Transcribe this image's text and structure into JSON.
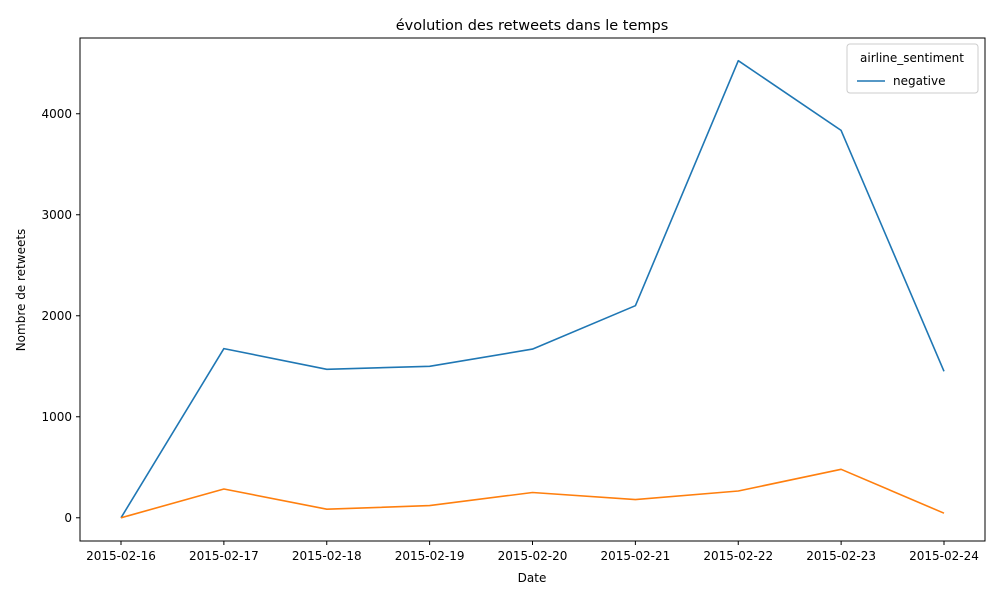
{
  "chart_data": {
    "type": "line",
    "title": "évolution des retweets dans le temps",
    "xlabel": "Date",
    "ylabel": "Nombre de retweets",
    "x": [
      "2015-02-16",
      "2015-02-17",
      "2015-02-18",
      "2015-02-19",
      "2015-02-20",
      "2015-02-21",
      "2015-02-22",
      "2015-02-23",
      "2015-02-24"
    ],
    "ylim": [
      -230,
      4750
    ],
    "yticks": [
      0,
      1000,
      2000,
      3000,
      4000
    ],
    "grid": false,
    "legend": {
      "title": "airline_sentiment",
      "placement": "top-right",
      "entries": [
        "negative"
      ]
    },
    "series": [
      {
        "name": "negative",
        "color": "#1f77b4",
        "values": [
          0,
          1675,
          1470,
          1500,
          1670,
          2100,
          4525,
          3835,
          1450
        ]
      },
      {
        "color": "#ff7f0e",
        "values": [
          0,
          285,
          85,
          120,
          250,
          180,
          265,
          480,
          45
        ]
      }
    ]
  }
}
